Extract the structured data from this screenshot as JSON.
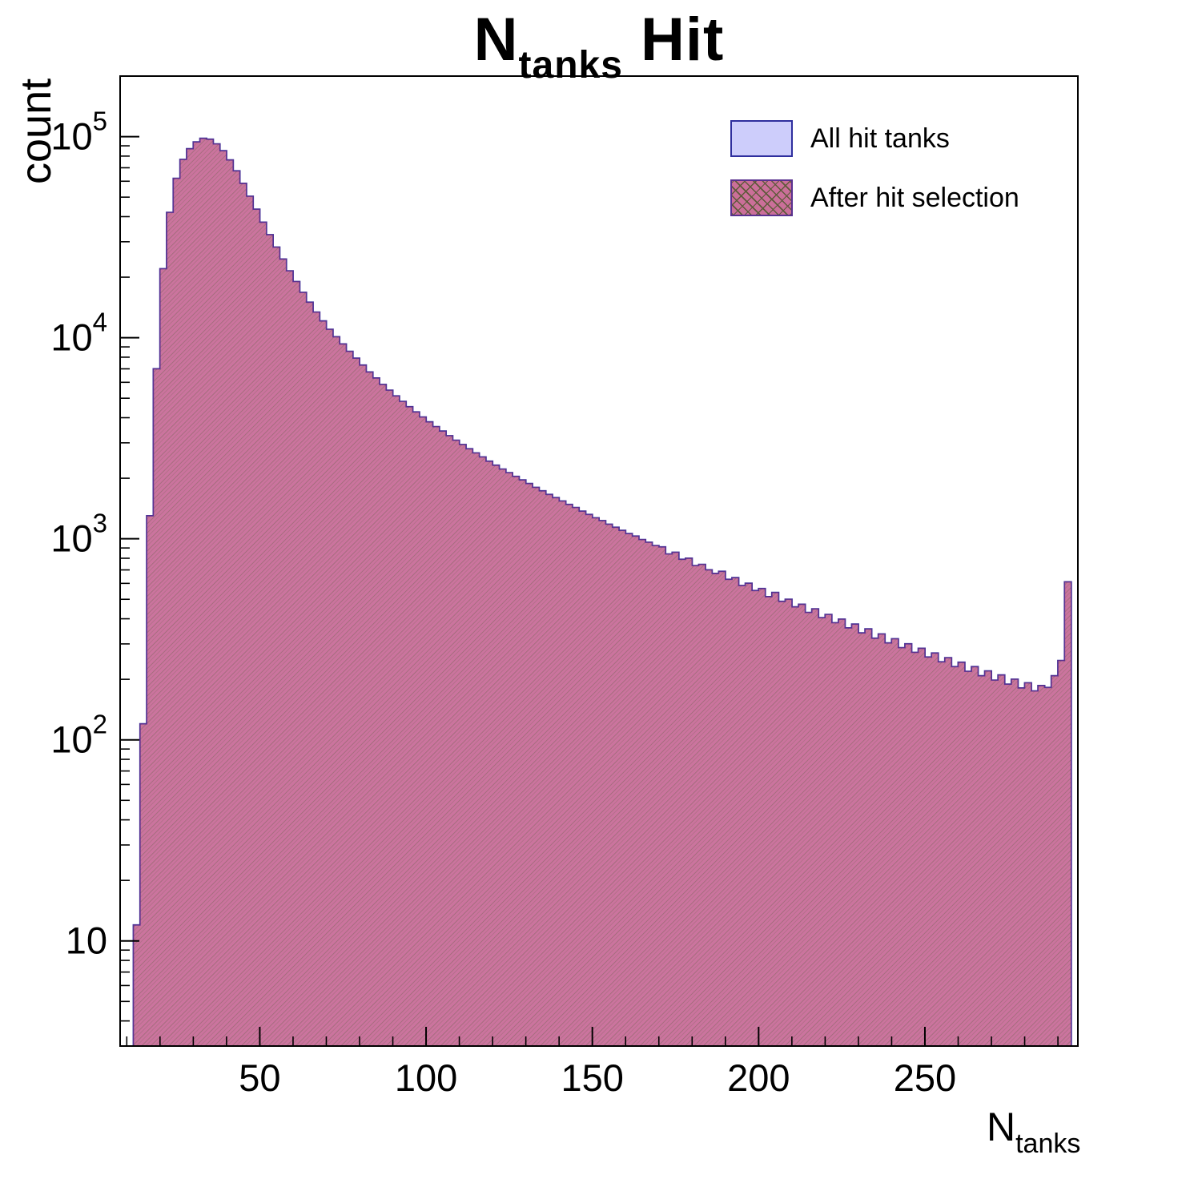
{
  "title": {
    "n": "N",
    "sub": "tanks",
    "rest": " Hit"
  },
  "y_axis_label": "count",
  "x_axis_label": {
    "n": "N",
    "sub": "tanks"
  },
  "legend": [
    {
      "label": "All hit tanks",
      "style": "solid"
    },
    {
      "label": "After hit selection",
      "style": "hatched"
    }
  ],
  "colors": {
    "all_fill": "#cdcdfb",
    "all_stroke": "#2f2f9e",
    "sel_fill": "#cb6f99",
    "sel_hatch": "#5e5a3a",
    "sel_stroke": "#5a3190",
    "frame": "#000000"
  },
  "chart_data": {
    "type": "bar",
    "histogram": true,
    "title": "N_{tanks} Hit",
    "xlabel": "N_tanks",
    "ylabel": "count",
    "yscale": "log",
    "grid": false,
    "legend_position": "upper right",
    "xlim": [
      8,
      296
    ],
    "ylim": [
      3,
      200000
    ],
    "xticks": [
      50,
      100,
      150,
      200,
      250
    ],
    "yticks_pow10": [
      1,
      2,
      3,
      4,
      5
    ],
    "bin_width": 2,
    "x": [
      10,
      12,
      14,
      16,
      18,
      20,
      22,
      24,
      26,
      28,
      30,
      32,
      34,
      36,
      38,
      40,
      42,
      44,
      46,
      48,
      50,
      52,
      54,
      56,
      58,
      60,
      62,
      64,
      66,
      68,
      70,
      72,
      74,
      76,
      78,
      80,
      82,
      84,
      86,
      88,
      90,
      92,
      94,
      96,
      98,
      100,
      102,
      104,
      106,
      108,
      110,
      112,
      114,
      116,
      118,
      120,
      122,
      124,
      126,
      128,
      130,
      132,
      134,
      136,
      138,
      140,
      142,
      144,
      146,
      148,
      150,
      152,
      154,
      156,
      158,
      160,
      162,
      164,
      166,
      168,
      170,
      172,
      174,
      176,
      178,
      180,
      182,
      184,
      186,
      188,
      190,
      192,
      194,
      196,
      198,
      200,
      202,
      204,
      206,
      208,
      210,
      212,
      214,
      216,
      218,
      220,
      222,
      224,
      226,
      228,
      230,
      232,
      234,
      236,
      238,
      240,
      242,
      244,
      246,
      248,
      250,
      252,
      254,
      256,
      258,
      260,
      262,
      264,
      266,
      268,
      270,
      272,
      274,
      276,
      278,
      280,
      282,
      284,
      286,
      288,
      290,
      292
    ],
    "series": [
      {
        "name": "All hit tanks",
        "values": [
          3,
          12,
          120,
          1300,
          7000,
          22000,
          42000,
          62000,
          77000,
          87000,
          94000,
          98000,
          97000,
          92000,
          85000,
          76500,
          67500,
          58500,
          50500,
          43500,
          37500,
          32500,
          28200,
          24600,
          21500,
          19000,
          16800,
          15000,
          13400,
          12100,
          11000,
          10100,
          9300,
          8550,
          7900,
          7300,
          6750,
          6300,
          5850,
          5480,
          5130,
          4820,
          4530,
          4270,
          4030,
          3810,
          3610,
          3430,
          3250,
          3090,
          2940,
          2800,
          2670,
          2550,
          2430,
          2320,
          2220,
          2130,
          2040,
          1960,
          1880,
          1800,
          1730,
          1660,
          1600,
          1540,
          1480,
          1430,
          1370,
          1320,
          1270,
          1230,
          1180,
          1140,
          1100,
          1060,
          1030,
          990,
          960,
          925,
          910,
          840,
          856,
          790,
          800,
          735,
          745,
          700,
          672,
          688,
          628,
          640,
          585,
          600,
          552,
          565,
          515,
          540,
          488,
          500,
          458,
          472,
          430,
          448,
          405,
          420,
          382,
          398,
          360,
          376,
          340,
          356,
          320,
          336,
          303,
          318,
          287,
          300,
          272,
          285,
          258,
          270,
          244,
          256,
          231,
          243,
          219,
          231,
          208,
          220,
          198,
          210,
          189,
          200,
          181,
          192,
          175,
          186,
          182,
          208,
          248,
          610
        ]
      },
      {
        "name": "After hit selection",
        "values": [
          3,
          12,
          120,
          1300,
          7000,
          22000,
          42000,
          62000,
          77000,
          87000,
          94000,
          98000,
          97000,
          92000,
          85000,
          76500,
          67500,
          58500,
          50500,
          43500,
          37500,
          32500,
          28200,
          24600,
          21500,
          19000,
          16800,
          15000,
          13400,
          12100,
          11000,
          10100,
          9300,
          8550,
          7900,
          7300,
          6750,
          6300,
          5850,
          5480,
          5130,
          4820,
          4530,
          4270,
          4030,
          3810,
          3610,
          3430,
          3250,
          3090,
          2940,
          2800,
          2670,
          2550,
          2430,
          2320,
          2220,
          2130,
          2040,
          1960,
          1880,
          1800,
          1730,
          1660,
          1600,
          1540,
          1480,
          1430,
          1370,
          1320,
          1270,
          1230,
          1180,
          1140,
          1100,
          1060,
          1030,
          990,
          960,
          925,
          910,
          840,
          856,
          790,
          800,
          735,
          745,
          700,
          672,
          688,
          628,
          640,
          585,
          600,
          552,
          565,
          515,
          540,
          488,
          500,
          458,
          472,
          430,
          448,
          405,
          420,
          382,
          398,
          360,
          376,
          340,
          356,
          320,
          336,
          303,
          318,
          287,
          300,
          272,
          285,
          258,
          270,
          244,
          256,
          231,
          243,
          219,
          231,
          208,
          220,
          198,
          210,
          189,
          200,
          181,
          192,
          175,
          186,
          182,
          208,
          248,
          610
        ]
      }
    ]
  }
}
